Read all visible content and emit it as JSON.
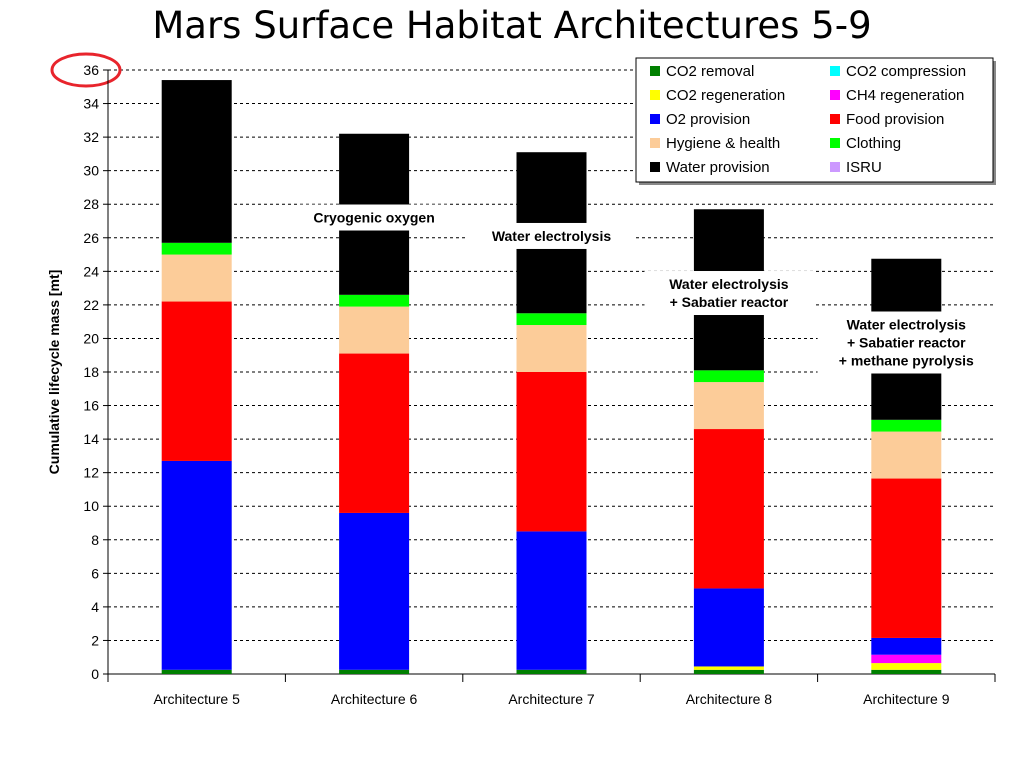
{
  "title": "Mars Surface Habitat Architectures 5-9",
  "chart_data": {
    "type": "bar",
    "stacked": true,
    "ylabel": "Cumulative lifecycle mass [mt]",
    "ylim": [
      0,
      36
    ],
    "ytick_step": 2,
    "grid": true,
    "legend_position": "top-right",
    "highlight_circle_tick": "36",
    "categories": [
      "Architecture 5",
      "Architecture 6",
      "Architecture 7",
      "Architecture 8",
      "Architecture 9"
    ],
    "series": [
      {
        "name": "CO2 removal",
        "color": "#008000",
        "values": [
          0.25,
          0.25,
          0.25,
          0.25,
          0.25
        ]
      },
      {
        "name": "CO2 compression",
        "color": "#00ffff",
        "values": [
          0,
          0,
          0,
          0,
          0
        ]
      },
      {
        "name": "CO2 regeneration",
        "color": "#ffff00",
        "values": [
          0,
          0,
          0,
          0.2,
          0.4
        ]
      },
      {
        "name": "CH4 regeneration",
        "color": "#ff00ff",
        "values": [
          0,
          0,
          0,
          0,
          0.5
        ]
      },
      {
        "name": "O2 provision",
        "color": "#0000ff",
        "values": [
          12.45,
          9.35,
          8.25,
          4.65,
          1.0
        ]
      },
      {
        "name": "Food provision",
        "color": "#ff0000",
        "values": [
          9.5,
          9.5,
          9.5,
          9.5,
          9.5
        ]
      },
      {
        "name": "Hygiene & health",
        "color": "#fccc99",
        "values": [
          2.8,
          2.8,
          2.8,
          2.8,
          2.8
        ]
      },
      {
        "name": "Clothing",
        "color": "#00ff00",
        "values": [
          0.7,
          0.7,
          0.7,
          0.7,
          0.7
        ]
      },
      {
        "name": "Water provision",
        "color": "#000000",
        "values": [
          9.7,
          9.6,
          9.6,
          9.6,
          9.6
        ]
      },
      {
        "name": "ISRU",
        "color": "#cc99ff",
        "values": [
          0,
          0,
          0,
          0,
          0
        ]
      }
    ],
    "annotations": [
      {
        "category_index": 1,
        "lines": [
          "Cryogenic oxygen"
        ]
      },
      {
        "category_index": 2,
        "lines": [
          "Water electrolysis"
        ]
      },
      {
        "category_index": 3,
        "lines": [
          "Water electrolysis",
          "+ Sabatier reactor"
        ]
      },
      {
        "category_index": 4,
        "lines": [
          "Water electrolysis",
          "+ Sabatier reactor",
          "+ methane pyrolysis"
        ]
      }
    ]
  }
}
